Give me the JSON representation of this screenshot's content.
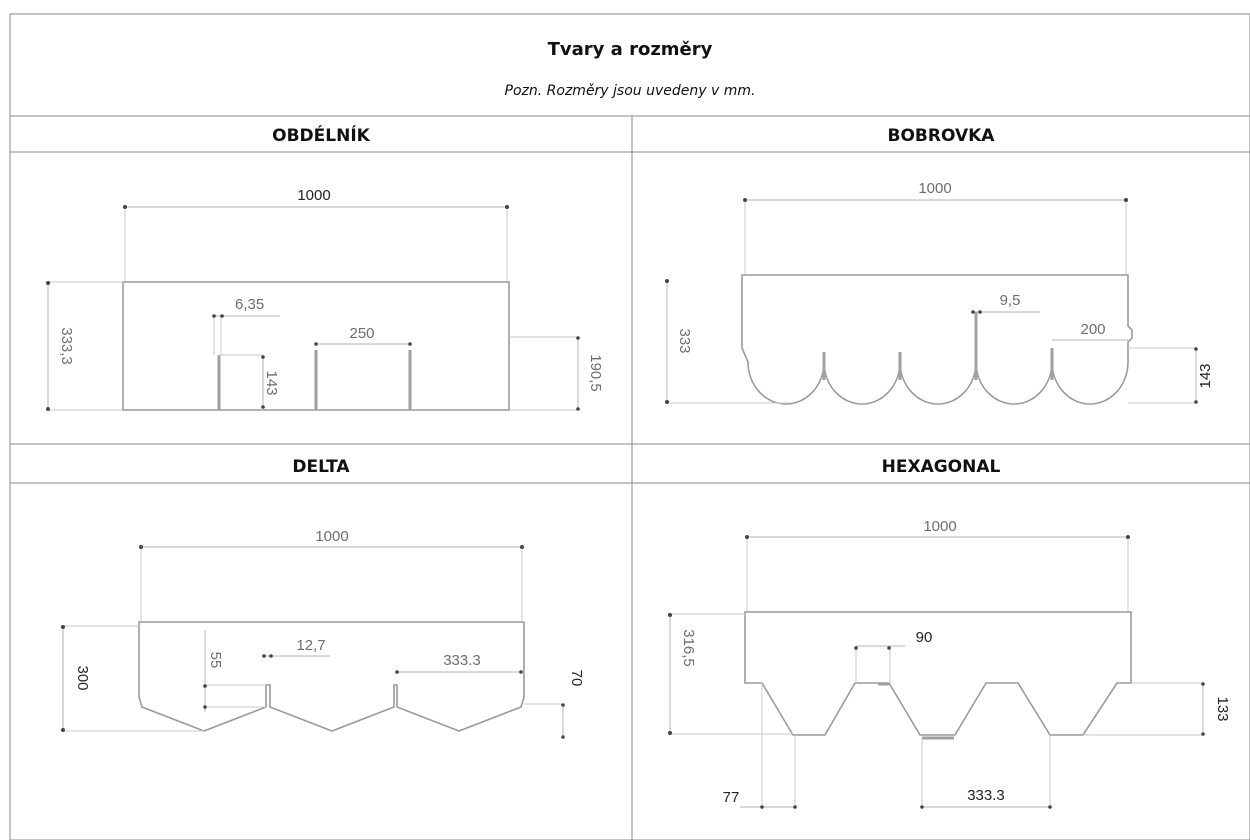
{
  "header": {
    "title": "Tvary a rozměry",
    "subtitle": "Pozn. Rozměry jsou uvedeny v mm."
  },
  "panels": {
    "obdelnik": {
      "title": "OBDÉLNÍK",
      "dims": {
        "width": "1000",
        "height": "333,3",
        "slot_width": "6,35",
        "spacing": "250",
        "slot_depth": "143",
        "exposed": "190,5"
      }
    },
    "bobrovka": {
      "title": "BOBROVKA",
      "dims": {
        "width": "1000",
        "height": "333",
        "slot_width": "9,5",
        "tab_width": "200",
        "tab_depth": "143"
      }
    },
    "delta": {
      "title": "DELTA",
      "dims": {
        "width": "1000",
        "height": "300",
        "slot_depth": "55",
        "slot_width": "12,7",
        "spacing": "333.3",
        "exposed": "70"
      }
    },
    "hexagonal": {
      "title": "HEXAGONAL",
      "dims": {
        "width": "1000",
        "height": "316,5",
        "gap": "90",
        "tab_depth": "133",
        "bottom_width": "77",
        "spacing": "333.3"
      }
    }
  }
}
